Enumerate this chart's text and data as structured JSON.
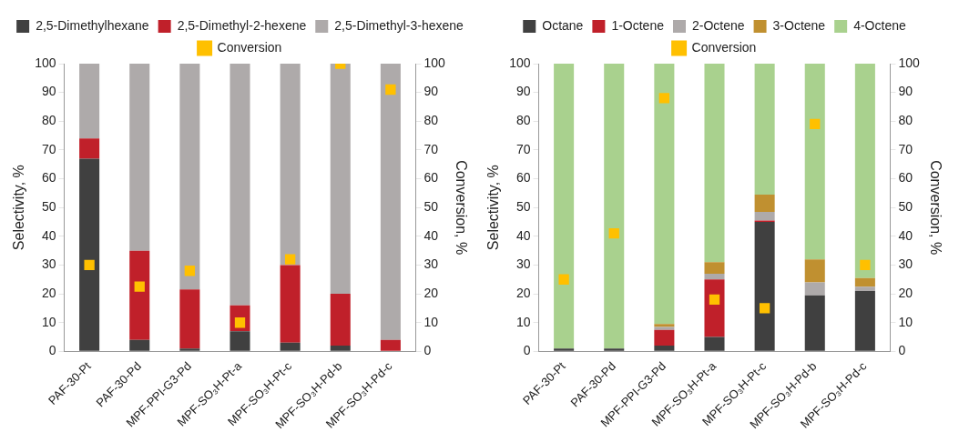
{
  "chart_data": [
    {
      "type": "bar",
      "stacked": true,
      "legend": "top",
      "grid": false,
      "marker": "square",
      "ylabel": "Selectivity, %",
      "y2label": "Conversion, %",
      "ylim": [
        0,
        100
      ],
      "yticks": [
        0,
        10,
        20,
        30,
        40,
        50,
        60,
        70,
        80,
        90,
        100
      ],
      "y2lim": [
        0,
        100
      ],
      "y2ticks": [
        0,
        10,
        20,
        30,
        40,
        50,
        60,
        70,
        80,
        90,
        100
      ],
      "categories": [
        "PAF-30-Pt",
        "PAF-30-Pd",
        "MPF-PPI-G3-Pd",
        "MPF-SO₃H-Pt-a",
        "MPF-SO₃H-Pt-c",
        "MPF-SO₃H-Pd-b",
        "MPF-SO₃H-Pd-c"
      ],
      "series": [
        {
          "name": "2,5-Dimethylhexane",
          "color": "#404040",
          "values": [
            67,
            4,
            1,
            7,
            3,
            2,
            0
          ]
        },
        {
          "name": "2,5-Dimethyl-2-hexene",
          "color": "#c0202a",
          "values": [
            7,
            31,
            20.5,
            9,
            27,
            18,
            4
          ]
        },
        {
          "name": "2,5-Dimethyl-3-hexene",
          "color": "#aeaaaa",
          "values": [
            26,
            65,
            78.5,
            84,
            70,
            80,
            96
          ]
        },
        {
          "name": "Conversion",
          "type": "scatter",
          "axis": "y2",
          "color": "#ffc000",
          "values": [
            30,
            22.5,
            28,
            10,
            32,
            100,
            91
          ]
        }
      ]
    },
    {
      "type": "bar",
      "stacked": true,
      "legend": "top",
      "grid": false,
      "marker": "square",
      "ylabel": "Selectivity, %",
      "y2label": "Conversion, %",
      "ylim": [
        0,
        100
      ],
      "yticks": [
        0,
        10,
        20,
        30,
        40,
        50,
        60,
        70,
        80,
        90,
        100
      ],
      "y2lim": [
        0,
        100
      ],
      "y2ticks": [
        0,
        10,
        20,
        30,
        40,
        50,
        60,
        70,
        80,
        90,
        100
      ],
      "categories": [
        "PAF-30-Pt",
        "PAF-30-Pd",
        "MPF-PPI-G3-Pd",
        "MPF-SO₃H-Pt-a",
        "MPF-SO₃H-Pt-c",
        "MPF-SO₃H-Pd-b",
        "MPF-SO₃H-Pd-c"
      ],
      "series": [
        {
          "name": "Octane",
          "color": "#404040",
          "values": [
            1,
            1,
            2,
            5,
            45,
            19.5,
            21
          ]
        },
        {
          "name": "1-Octene",
          "color": "#c0202a",
          "values": [
            0,
            0,
            5.5,
            20,
            0.5,
            0,
            0
          ]
        },
        {
          "name": "2-Octene",
          "color": "#aeaaaa",
          "values": [
            0,
            0,
            1,
            2,
            3,
            4.5,
            1.5
          ]
        },
        {
          "name": "3-Octene",
          "color": "#c09030",
          "values": [
            0,
            0,
            1,
            4,
            6,
            8,
            3
          ]
        },
        {
          "name": "4-Octene",
          "color": "#a9d18e",
          "values": [
            99,
            99,
            90.5,
            69,
            45.5,
            68,
            74.5
          ]
        },
        {
          "name": "Conversion",
          "type": "scatter",
          "axis": "y2",
          "color": "#ffc000",
          "values": [
            25,
            41,
            88,
            18,
            15,
            79,
            30
          ]
        }
      ]
    }
  ]
}
